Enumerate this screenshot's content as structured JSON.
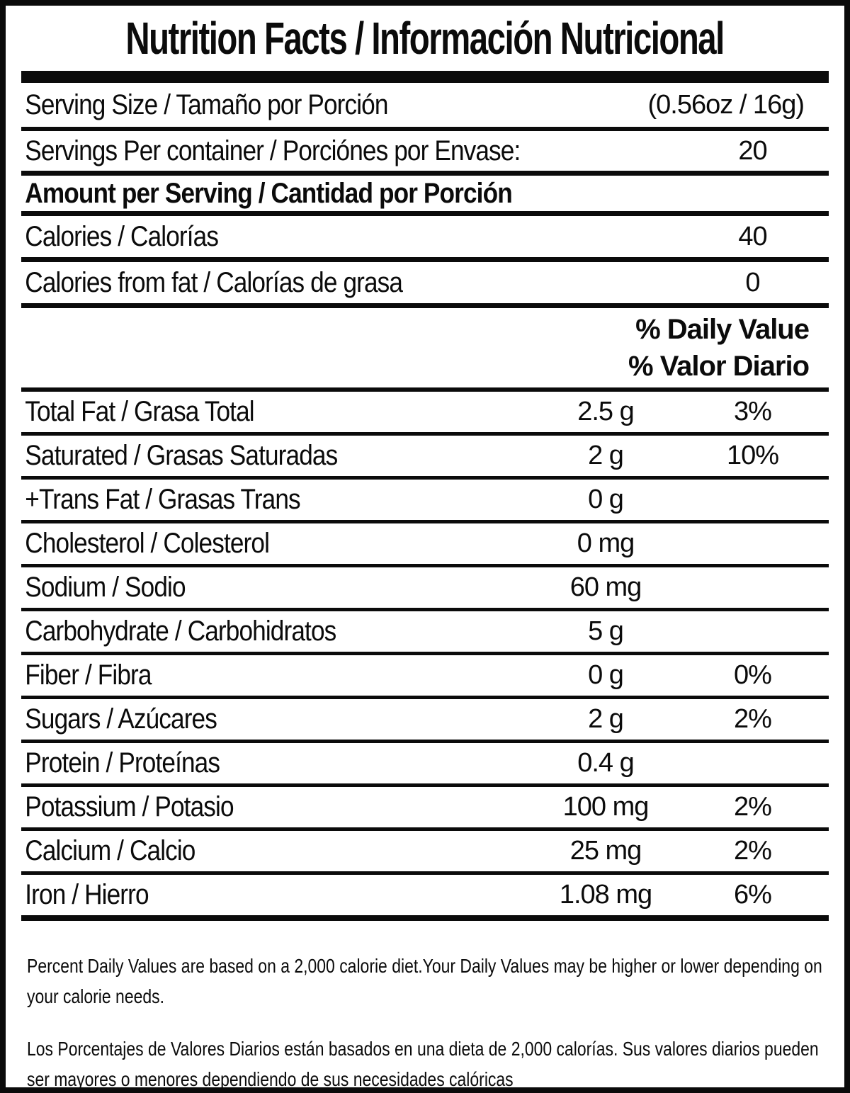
{
  "title": "Nutrition Facts / Información Nutricional",
  "serving": {
    "size_label": "Serving Size / Tamaño por Porción",
    "size_value": "(0.56oz / 16g)",
    "per_container_label": "Servings Per container / Porciónes por Envase:",
    "per_container_value": "20"
  },
  "amount_header": "Amount per Serving / Cantidad por Porción",
  "calories": {
    "label": "Calories / Calorías",
    "value": "40"
  },
  "calories_from_fat": {
    "label": "Calories from fat / Calorías de grasa",
    "value": "0"
  },
  "daily_value_header": {
    "line1": "% Daily Value",
    "line2": "% Valor Diario"
  },
  "nutrients": [
    {
      "label": "Total Fat / Grasa Total",
      "amount": "2.5 g",
      "dv": "3%"
    },
    {
      "label": "Saturated / Grasas Saturadas",
      "amount": "2 g",
      "dv": "10%"
    },
    {
      "label": "+Trans Fat / Grasas Trans",
      "amount": "0 g",
      "dv": ""
    },
    {
      "label": "Cholesterol / Colesterol",
      "amount": "0 mg",
      "dv": ""
    },
    {
      "label": "Sodium / Sodio",
      "amount": "60 mg",
      "dv": ""
    },
    {
      "label": "Carbohydrate / Carbohidratos",
      "amount": "5 g",
      "dv": ""
    },
    {
      "label": "Fiber / Fibra",
      "amount": "0 g",
      "dv": "0%"
    },
    {
      "label": "Sugars / Azúcares",
      "amount": "2 g",
      "dv": "2%"
    },
    {
      "label": "Protein / Proteínas",
      "amount": "0.4 g",
      "dv": ""
    },
    {
      "label": "Potassium / Potasio",
      "amount": "100 mg",
      "dv": "2%"
    },
    {
      "label": "Calcium / Calcio",
      "amount": "25 mg",
      "dv": "2%"
    },
    {
      "label": "Iron / Hierro",
      "amount": "1.08 mg",
      "dv": "6%"
    }
  ],
  "footnotes": {
    "en": "Percent Daily Values are based on a 2,000 calorie diet.Your Daily Values may be higher or lower depending on your calorie needs.",
    "es": "Los Porcentajes de Valores Diarios están basados en una dieta de 2,000 calorías. Sus valores diarios pueden ser mayores o menores dependiendo de sus necesidades calóricas"
  },
  "colors": {
    "text": "#0b0b0b",
    "background": "#ffffff"
  }
}
